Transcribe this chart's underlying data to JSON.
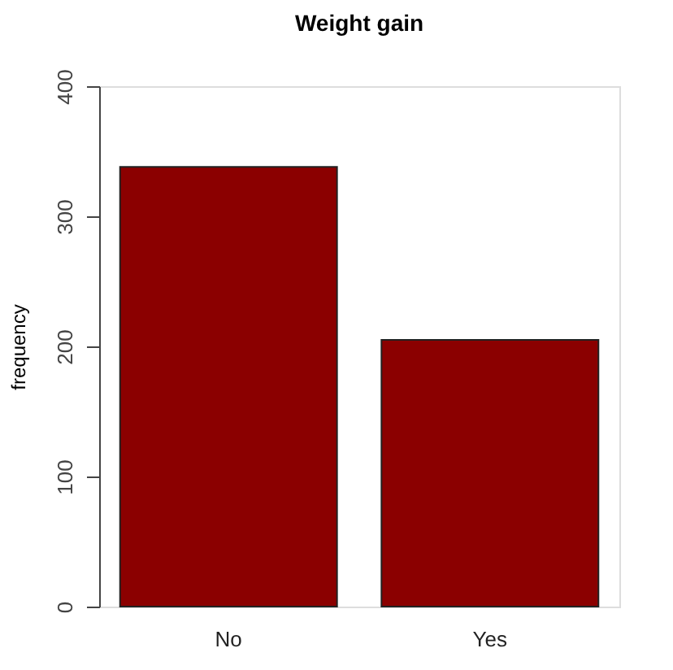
{
  "chart_data": {
    "type": "bar",
    "title": "Weight gain",
    "ylabel": "frequency",
    "categories": [
      "No",
      "Yes"
    ],
    "values": [
      338,
      205
    ],
    "color": "#8b0000",
    "ylim": [
      0,
      400
    ],
    "yticks": [
      0,
      100,
      200,
      300,
      400
    ],
    "grid": false
  }
}
